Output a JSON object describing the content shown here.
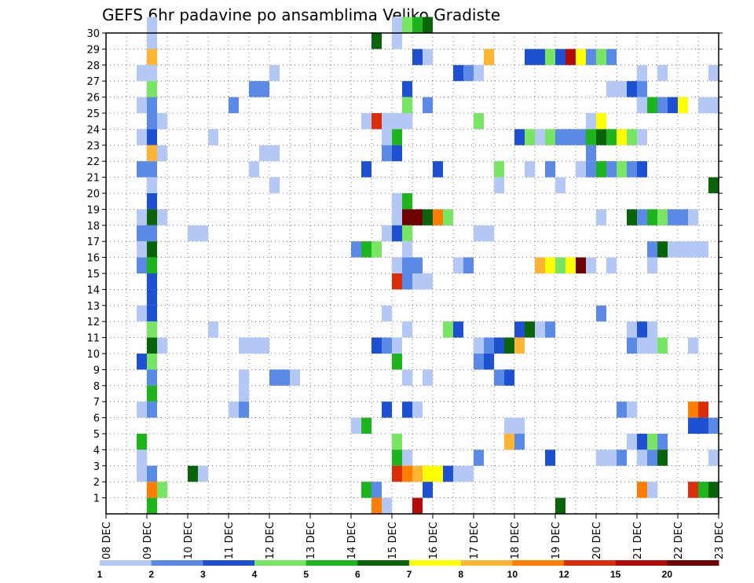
{
  "chart_data": {
    "type": "heatmap",
    "title": "GEFS 6hr padavine po ansamblima Veliko Gradiste",
    "x_tick_labels": [
      "08 DEC",
      "09 DEC",
      "10 DEC",
      "11 DEC",
      "12 DEC",
      "13 DEC",
      "14 DEC",
      "15 DEC",
      "16 DEC",
      "17 DEC",
      "18 DEC",
      "19 DEC",
      "20 DEC",
      "21 DEC",
      "22 DEC",
      "23 DEC"
    ],
    "y_tick_labels": [
      "1",
      "2",
      "3",
      "4",
      "5",
      "6",
      "7",
      "8",
      "9",
      "10",
      "11",
      "12",
      "13",
      "14",
      "15",
      "16",
      "17",
      "18",
      "19",
      "20",
      "21",
      "22",
      "23",
      "24",
      "25",
      "26",
      "27",
      "28",
      "29",
      "30"
    ],
    "x_unit": "6-hour step",
    "xlim": [
      0,
      60
    ],
    "ylim": [
      0,
      30
    ],
    "grid": true,
    "colorbar": {
      "labels": [
        "1",
        "2",
        "3",
        "4",
        "5",
        "6",
        "7",
        "8",
        "10",
        "12",
        "15",
        "20"
      ],
      "colors": [
        "#b4c8f5",
        "#5a8ae6",
        "#1e50d2",
        "#78e664",
        "#1eb41e",
        "#0a640a",
        "#ffff00",
        "#ffb432",
        "#ff7d00",
        "#dc2d0a",
        "#b40a0a",
        "#6e0000"
      ]
    },
    "cells": [
      [
        4,
        30,
        0
      ],
      [
        28,
        30,
        0
      ],
      [
        29,
        30,
        3
      ],
      [
        30,
        30,
        4
      ],
      [
        31,
        30,
        5
      ],
      [
        4,
        29,
        0
      ],
      [
        26,
        29,
        5
      ],
      [
        28,
        29,
        0
      ],
      [
        4,
        28,
        7
      ],
      [
        30,
        28,
        2
      ],
      [
        31,
        28,
        0
      ],
      [
        37,
        28,
        7
      ],
      [
        41,
        28,
        2
      ],
      [
        42,
        28,
        2
      ],
      [
        43,
        28,
        3
      ],
      [
        44,
        28,
        2
      ],
      [
        45,
        28,
        10
      ],
      [
        46,
        28,
        6
      ],
      [
        47,
        28,
        1
      ],
      [
        48,
        28,
        3
      ],
      [
        49,
        28,
        1
      ],
      [
        3,
        27,
        0
      ],
      [
        4,
        27,
        0
      ],
      [
        16,
        27,
        0
      ],
      [
        34,
        27,
        2
      ],
      [
        35,
        27,
        1
      ],
      [
        36,
        27,
        0
      ],
      [
        52,
        27,
        0
      ],
      [
        54,
        27,
        0
      ],
      [
        59,
        27,
        0
      ],
      [
        4,
        26,
        3
      ],
      [
        14,
        26,
        1
      ],
      [
        15,
        26,
        1
      ],
      [
        29,
        26,
        2
      ],
      [
        49,
        26,
        0
      ],
      [
        50,
        26,
        0
      ],
      [
        51,
        26,
        2
      ],
      [
        52,
        26,
        1
      ],
      [
        3,
        25,
        0
      ],
      [
        4,
        25,
        1
      ],
      [
        12,
        25,
        1
      ],
      [
        29,
        25,
        3
      ],
      [
        31,
        25,
        1
      ],
      [
        52,
        25,
        0
      ],
      [
        53,
        25,
        4
      ],
      [
        54,
        25,
        1
      ],
      [
        55,
        25,
        2
      ],
      [
        56,
        25,
        6
      ],
      [
        58,
        25,
        0
      ],
      [
        59,
        25,
        0
      ],
      [
        4,
        24,
        1
      ],
      [
        5,
        24,
        0
      ],
      [
        25,
        24,
        0
      ],
      [
        26,
        24,
        9
      ],
      [
        27,
        24,
        0
      ],
      [
        28,
        24,
        0
      ],
      [
        29,
        24,
        0
      ],
      [
        36,
        24,
        3
      ],
      [
        47,
        24,
        0
      ],
      [
        48,
        24,
        6
      ],
      [
        3,
        23,
        0
      ],
      [
        4,
        23,
        2
      ],
      [
        10,
        23,
        0
      ],
      [
        27,
        23,
        0
      ],
      [
        28,
        23,
        4
      ],
      [
        40,
        23,
        2
      ],
      [
        41,
        23,
        3
      ],
      [
        42,
        23,
        0
      ],
      [
        43,
        23,
        3
      ],
      [
        44,
        23,
        1
      ],
      [
        45,
        23,
        1
      ],
      [
        46,
        23,
        1
      ],
      [
        47,
        23,
        4
      ],
      [
        48,
        23,
        5
      ],
      [
        49,
        23,
        4
      ],
      [
        50,
        23,
        6
      ],
      [
        51,
        23,
        3
      ],
      [
        52,
        23,
        0
      ],
      [
        4,
        22,
        7
      ],
      [
        5,
        22,
        0
      ],
      [
        15,
        22,
        0
      ],
      [
        16,
        22,
        0
      ],
      [
        27,
        22,
        1
      ],
      [
        28,
        22,
        2
      ],
      [
        47,
        22,
        1
      ],
      [
        3,
        21,
        1
      ],
      [
        4,
        21,
        1
      ],
      [
        14,
        21,
        0
      ],
      [
        25,
        21,
        2
      ],
      [
        32,
        21,
        2
      ],
      [
        38,
        21,
        3
      ],
      [
        41,
        21,
        0
      ],
      [
        43,
        21,
        1
      ],
      [
        46,
        21,
        0
      ],
      [
        47,
        21,
        1
      ],
      [
        48,
        21,
        4
      ],
      [
        49,
        21,
        1
      ],
      [
        50,
        21,
        3
      ],
      [
        51,
        21,
        1
      ],
      [
        52,
        21,
        2
      ],
      [
        4,
        20,
        0
      ],
      [
        16,
        20,
        0
      ],
      [
        38,
        20,
        0
      ],
      [
        44,
        20,
        0
      ],
      [
        59,
        20,
        5
      ],
      [
        4,
        19,
        2
      ],
      [
        28,
        19,
        0
      ],
      [
        29,
        19,
        4
      ],
      [
        3,
        18,
        0
      ],
      [
        4,
        18,
        5
      ],
      [
        5,
        18,
        0
      ],
      [
        28,
        18,
        0
      ],
      [
        29,
        18,
        11
      ],
      [
        30,
        18,
        11
      ],
      [
        31,
        18,
        5
      ],
      [
        32,
        18,
        8
      ],
      [
        33,
        18,
        3
      ],
      [
        48,
        18,
        0
      ],
      [
        51,
        18,
        5
      ],
      [
        52,
        18,
        1
      ],
      [
        53,
        18,
        4
      ],
      [
        54,
        18,
        3
      ],
      [
        55,
        18,
        1
      ],
      [
        56,
        18,
        1
      ],
      [
        57,
        18,
        0
      ],
      [
        3,
        17,
        1
      ],
      [
        4,
        17,
        1
      ],
      [
        8,
        17,
        0
      ],
      [
        9,
        17,
        0
      ],
      [
        27,
        17,
        0
      ],
      [
        28,
        17,
        2
      ],
      [
        29,
        17,
        3
      ],
      [
        36,
        17,
        0
      ],
      [
        37,
        17,
        0
      ],
      [
        3,
        16,
        0
      ],
      [
        4,
        16,
        5
      ],
      [
        24,
        16,
        1
      ],
      [
        25,
        16,
        4
      ],
      [
        26,
        16,
        3
      ],
      [
        29,
        16,
        0
      ],
      [
        53,
        16,
        1
      ],
      [
        54,
        16,
        5
      ],
      [
        55,
        16,
        0
      ],
      [
        56,
        16,
        0
      ],
      [
        57,
        16,
        0
      ],
      [
        58,
        16,
        0
      ],
      [
        3,
        15,
        1
      ],
      [
        4,
        15,
        4
      ],
      [
        28,
        15,
        0
      ],
      [
        29,
        15,
        1
      ],
      [
        30,
        15,
        1
      ],
      [
        34,
        15,
        0
      ],
      [
        35,
        15,
        1
      ],
      [
        42,
        15,
        7
      ],
      [
        43,
        15,
        6
      ],
      [
        44,
        15,
        3
      ],
      [
        45,
        15,
        6
      ],
      [
        46,
        15,
        11
      ],
      [
        47,
        15,
        0
      ],
      [
        49,
        15,
        0
      ],
      [
        53,
        15,
        0
      ],
      [
        4,
        14,
        2
      ],
      [
        28,
        14,
        9
      ],
      [
        29,
        14,
        1
      ],
      [
        30,
        14,
        0
      ],
      [
        31,
        14,
        0
      ],
      [
        4,
        13,
        2
      ],
      [
        3,
        12,
        0
      ],
      [
        4,
        12,
        2
      ],
      [
        27,
        12,
        0
      ],
      [
        48,
        12,
        1
      ],
      [
        4,
        11,
        3
      ],
      [
        10,
        11,
        0
      ],
      [
        29,
        11,
        0
      ],
      [
        33,
        11,
        3
      ],
      [
        34,
        11,
        2
      ],
      [
        40,
        11,
        2
      ],
      [
        41,
        11,
        5
      ],
      [
        42,
        11,
        0
      ],
      [
        43,
        11,
        1
      ],
      [
        51,
        11,
        0
      ],
      [
        52,
        11,
        2
      ],
      [
        53,
        11,
        0
      ],
      [
        4,
        10,
        5
      ],
      [
        5,
        10,
        0
      ],
      [
        13,
        10,
        0
      ],
      [
        14,
        10,
        0
      ],
      [
        15,
        10,
        0
      ],
      [
        26,
        10,
        2
      ],
      [
        27,
        10,
        1
      ],
      [
        28,
        10,
        0
      ],
      [
        36,
        10,
        0
      ],
      [
        37,
        10,
        1
      ],
      [
        38,
        10,
        2
      ],
      [
        39,
        10,
        5
      ],
      [
        40,
        10,
        7
      ],
      [
        51,
        10,
        1
      ],
      [
        52,
        10,
        0
      ],
      [
        53,
        10,
        0
      ],
      [
        54,
        10,
        3
      ],
      [
        57,
        10,
        0
      ],
      [
        3,
        9,
        2
      ],
      [
        4,
        9,
        3
      ],
      [
        28,
        9,
        4
      ],
      [
        36,
        9,
        1
      ],
      [
        37,
        9,
        2
      ],
      [
        4,
        8,
        1
      ],
      [
        13,
        8,
        0
      ],
      [
        16,
        8,
        1
      ],
      [
        17,
        8,
        1
      ],
      [
        18,
        8,
        0
      ],
      [
        29,
        8,
        0
      ],
      [
        31,
        8,
        0
      ],
      [
        38,
        8,
        1
      ],
      [
        39,
        8,
        2
      ],
      [
        4,
        7,
        4
      ],
      [
        13,
        7,
        0
      ],
      [
        3,
        6,
        0
      ],
      [
        4,
        6,
        1
      ],
      [
        12,
        6,
        0
      ],
      [
        13,
        6,
        1
      ],
      [
        27,
        6,
        2
      ],
      [
        29,
        6,
        2
      ],
      [
        30,
        6,
        0
      ],
      [
        50,
        6,
        1
      ],
      [
        51,
        6,
        0
      ],
      [
        57,
        6,
        8
      ],
      [
        58,
        6,
        9
      ],
      [
        24,
        5,
        0
      ],
      [
        25,
        5,
        4
      ],
      [
        39,
        5,
        0
      ],
      [
        40,
        5,
        0
      ],
      [
        57,
        5,
        2
      ],
      [
        58,
        5,
        2
      ],
      [
        59,
        5,
        1
      ],
      [
        3,
        4,
        4
      ],
      [
        28,
        4,
        3
      ],
      [
        39,
        4,
        7
      ],
      [
        40,
        4,
        1
      ],
      [
        51,
        4,
        0
      ],
      [
        52,
        4,
        2
      ],
      [
        53,
        4,
        3
      ],
      [
        54,
        4,
        1
      ],
      [
        3,
        3,
        0
      ],
      [
        28,
        3,
        4
      ],
      [
        29,
        3,
        0
      ],
      [
        36,
        3,
        1
      ],
      [
        43,
        3,
        2
      ],
      [
        48,
        3,
        0
      ],
      [
        49,
        3,
        0
      ],
      [
        50,
        3,
        1
      ],
      [
        52,
        3,
        0
      ],
      [
        53,
        3,
        1
      ],
      [
        54,
        3,
        5
      ],
      [
        59,
        3,
        0
      ],
      [
        3,
        2,
        0
      ],
      [
        4,
        2,
        1
      ],
      [
        8,
        2,
        5
      ],
      [
        9,
        2,
        0
      ],
      [
        28,
        2,
        9
      ],
      [
        29,
        2,
        8
      ],
      [
        30,
        2,
        7
      ],
      [
        31,
        2,
        6
      ],
      [
        32,
        2,
        6
      ],
      [
        33,
        2,
        2
      ],
      [
        34,
        2,
        0
      ],
      [
        35,
        2,
        0
      ],
      [
        4,
        1,
        8
      ],
      [
        5,
        1,
        3
      ],
      [
        25,
        1,
        4
      ],
      [
        26,
        1,
        1
      ],
      [
        31,
        1,
        2
      ],
      [
        52,
        1,
        8
      ],
      [
        53,
        1,
        0
      ],
      [
        57,
        1,
        9
      ],
      [
        58,
        1,
        4
      ],
      [
        59,
        1,
        5
      ],
      [
        4,
        0,
        4
      ],
      [
        26,
        0,
        8
      ],
      [
        27,
        0,
        0
      ],
      [
        30,
        0,
        10
      ],
      [
        44,
        0,
        5
      ]
    ]
  }
}
